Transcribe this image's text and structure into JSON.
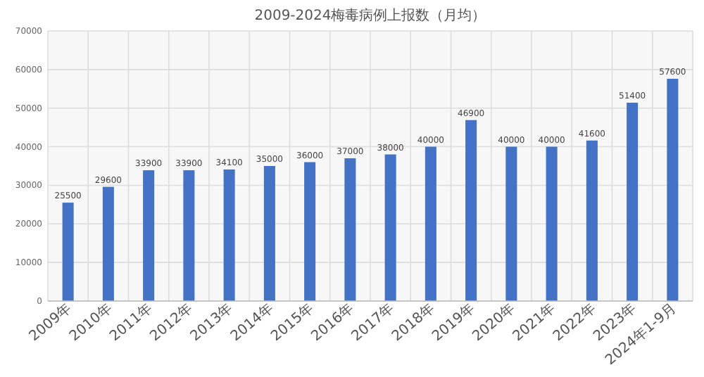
{
  "chart_data": {
    "type": "bar",
    "title": "2009-2024梅毒病例上报数（月均）",
    "categories": [
      "2009年",
      "2010年",
      "2011年",
      "2012年",
      "2013年",
      "2014年",
      "2015年",
      "2016年",
      "2017年",
      "2018年",
      "2019年",
      "2020年",
      "2021年",
      "2022年",
      "2023年",
      "2024年1-9月"
    ],
    "values": [
      25500,
      29600,
      33900,
      33900,
      34100,
      35000,
      36000,
      37000,
      38000,
      40000,
      46900,
      40000,
      40000,
      41600,
      51400,
      57600
    ],
    "color": "#4472c4",
    "ylim": [
      0,
      70000
    ],
    "yticks": [
      0,
      10000,
      20000,
      30000,
      40000,
      50000,
      60000,
      70000
    ],
    "grid": true,
    "data_labels": true
  }
}
